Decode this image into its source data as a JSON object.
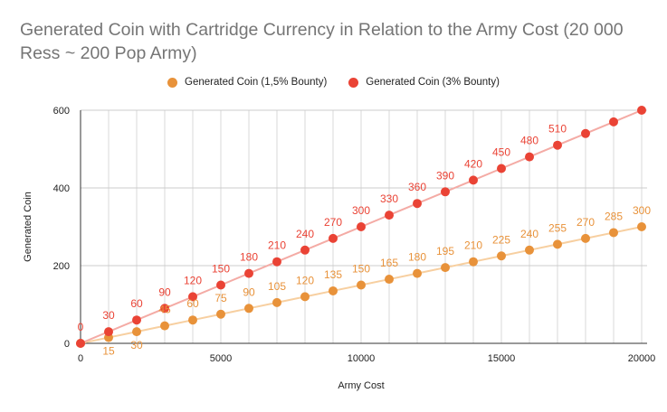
{
  "chart_data": {
    "type": "line",
    "title": "Generated Coin with Cartridge Currency in Relation to the Army Cost (20 000 Ress ~ 200 Pop Army)",
    "xlabel": "Army Cost",
    "ylabel": "Generated Coin",
    "xlim": [
      0,
      20000
    ],
    "ylim": [
      0,
      600
    ],
    "xticks": [
      "0",
      "5000",
      "10000",
      "15000",
      "20000"
    ],
    "yticks": [
      "0",
      "200",
      "400",
      "600"
    ],
    "grid": true,
    "legend_position": "top",
    "x": [
      0,
      1000,
      2000,
      3000,
      4000,
      5000,
      6000,
      7000,
      8000,
      9000,
      10000,
      11000,
      12000,
      13000,
      14000,
      15000,
      16000,
      17000,
      18000,
      19000,
      20000
    ],
    "series": [
      {
        "name": "Generated Coin (1,5% Bounty)",
        "color": "#e8923a",
        "line_color": "#f7cfa0",
        "values": [
          0,
          15,
          30,
          45,
          60,
          75,
          90,
          105,
          120,
          135,
          150,
          165,
          180,
          195,
          210,
          225,
          240,
          255,
          270,
          285,
          300
        ],
        "labels": [
          null,
          "15",
          "30",
          "45",
          "60",
          "75",
          "90",
          "105",
          "120",
          "135",
          "150",
          "165",
          "180",
          "195",
          "210",
          "225",
          "240",
          "255",
          "270",
          "285",
          "300"
        ]
      },
      {
        "name": "Generated Coin (3% Bounty)",
        "color": "#ea4335",
        "line_color": "#f4aba5",
        "values": [
          0,
          30,
          60,
          90,
          120,
          150,
          180,
          210,
          240,
          270,
          300,
          330,
          360,
          390,
          420,
          450,
          480,
          510,
          540,
          570,
          600
        ],
        "labels": [
          "0",
          "30",
          "60",
          "90",
          "120",
          "150",
          "180",
          "210",
          "240",
          "270",
          "300",
          "330",
          "360",
          "390",
          "420",
          "450",
          "480",
          "510",
          null,
          null,
          null
        ]
      }
    ]
  }
}
